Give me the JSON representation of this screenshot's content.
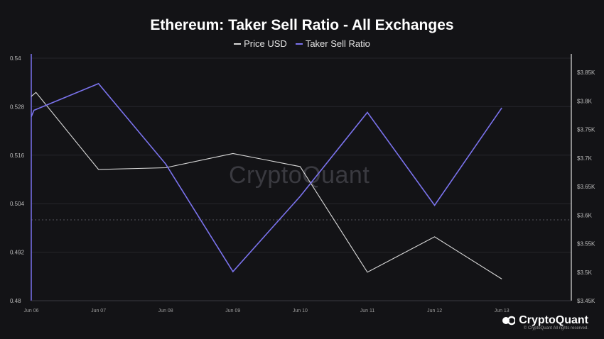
{
  "chart_data": {
    "type": "line",
    "title": "Ethereum: Taker Sell Ratio - All Exchanges",
    "categories": [
      "Jun 06",
      "Jun 07",
      "Jun 08",
      "Jun 09",
      "Jun 10",
      "Jun 11",
      "Jun 12",
      "Jun 13"
    ],
    "y_left": {
      "ticks": [
        "0.54",
        "0.528",
        "0.516",
        "0.504",
        "0.492",
        "0.48"
      ],
      "range": [
        0.48,
        0.54
      ]
    },
    "y_right": {
      "ticks": [
        "$3.85K",
        "$3.8K",
        "$3.75K",
        "$3.7K",
        "$3.65K",
        "$3.6K",
        "$3.55K",
        "$3.5K",
        "$3.45K"
      ],
      "range": [
        3450,
        3875
      ]
    },
    "reference_line": {
      "axis": "left",
      "value": 0.5
    },
    "series": [
      {
        "name": "Price USD",
        "axis": "right",
        "color": "#d9d9d9",
        "points": [
          [
            0,
            3808
          ],
          [
            0.07,
            3815
          ],
          [
            1,
            3680
          ],
          [
            2,
            3683
          ],
          [
            3,
            3708
          ],
          [
            4,
            3685
          ],
          [
            5,
            3500
          ],
          [
            6,
            3562
          ],
          [
            7,
            3488
          ]
        ]
      },
      {
        "name": "Taker Sell Ratio",
        "axis": "left",
        "color": "#7b73ee",
        "points": [
          [
            0,
            0.5255
          ],
          [
            0.04,
            0.5271
          ],
          [
            1,
            0.5337
          ],
          [
            2,
            0.5138
          ],
          [
            3,
            0.4872
          ],
          [
            4,
            0.5058
          ],
          [
            5,
            0.5266
          ],
          [
            6,
            0.5036
          ],
          [
            7,
            0.5277
          ]
        ]
      }
    ],
    "legend": [
      "Price USD",
      "Taker Sell Ratio"
    ]
  },
  "brand": {
    "name": "CryptoQuant",
    "copyright": "© CryptoQuant All rights reserved."
  },
  "watermark": "CryptoQuant",
  "colors": {
    "background": "#131316",
    "price": "#d9d9d9",
    "ratio": "#7b73ee"
  }
}
